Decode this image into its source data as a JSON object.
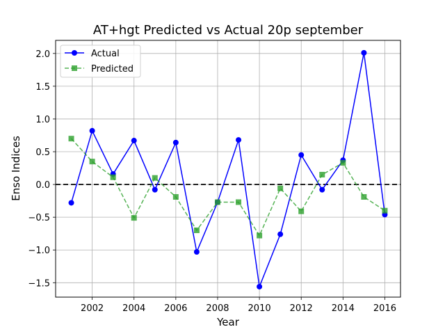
{
  "chart_data": {
    "type": "line",
    "title": "AT+hgt Predicted vs Actual 20p september",
    "xlabel": "Year",
    "ylabel": "Enso Indices",
    "xlim": [
      2000.25,
      2016.75
    ],
    "ylim": [
      -1.72,
      2.2
    ],
    "xticks": [
      2002,
      2004,
      2006,
      2008,
      2010,
      2012,
      2014,
      2016
    ],
    "yticks": [
      -1.5,
      -1.0,
      -0.5,
      0.0,
      0.5,
      1.0,
      1.5,
      2.0
    ],
    "grid": true,
    "legend_position": "top-left",
    "reference_line": {
      "y": 0.0,
      "style": "dashed",
      "color": "#000000"
    },
    "x": [
      2001,
      2002,
      2003,
      2004,
      2005,
      2006,
      2007,
      2008,
      2009,
      2010,
      2011,
      2012,
      2013,
      2014,
      2015,
      2016
    ],
    "series": [
      {
        "name": "Actual",
        "color": "#0000ff",
        "line_style": "solid",
        "marker": "circle",
        "values": [
          -0.28,
          0.82,
          0.16,
          0.67,
          -0.08,
          0.64,
          -1.03,
          -0.27,
          0.68,
          -1.56,
          -0.76,
          0.45,
          -0.08,
          0.37,
          2.01,
          -0.46
        ]
      },
      {
        "name": "Predicted",
        "color": "#2ca02c",
        "line_style": "dashed",
        "marker": "square",
        "values": [
          0.7,
          0.35,
          0.11,
          -0.51,
          0.1,
          -0.19,
          -0.7,
          -0.27,
          -0.27,
          -0.78,
          -0.06,
          -0.41,
          0.15,
          0.33,
          -0.19,
          -0.4
        ]
      }
    ]
  }
}
